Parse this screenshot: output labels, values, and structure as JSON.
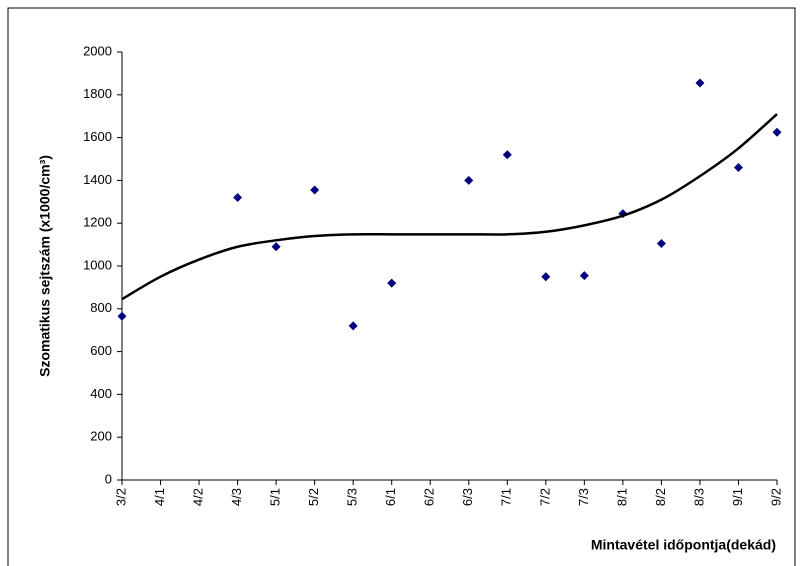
{
  "chart_data": {
    "type": "scatter",
    "y_label": "Szomatikus sejtszám (x1000/cm³)",
    "x_label": "Mintavétel időpontja(dekád)",
    "categories": [
      "3/2",
      "4/1",
      "4/2",
      "4/3",
      "5/1",
      "5/2",
      "5/3",
      "6/1",
      "6/2",
      "6/3",
      "7/1",
      "7/2",
      "7/3",
      "8/1",
      "8/2",
      "8/3",
      "9/1",
      "9/2"
    ],
    "series": [
      {
        "color": "#000080",
        "values": [
          765,
          null,
          null,
          1320,
          1090,
          1355,
          720,
          920,
          null,
          1400,
          1520,
          950,
          955,
          1245,
          1105,
          1855,
          1460,
          1625
        ]
      },
      {
        "color": "#000000",
        "values": [
          845,
          950,
          1030,
          1090,
          1120,
          1140,
          1148,
          1148,
          1148,
          1148,
          1148,
          1160,
          1190,
          1235,
          1310,
          1420,
          1550,
          1710
        ]
      }
    ],
    "ylim": [
      0,
      2000
    ],
    "yticks": [
      0,
      200,
      400,
      600,
      800,
      1000,
      1200,
      1400,
      1600,
      1800,
      2000
    ]
  }
}
